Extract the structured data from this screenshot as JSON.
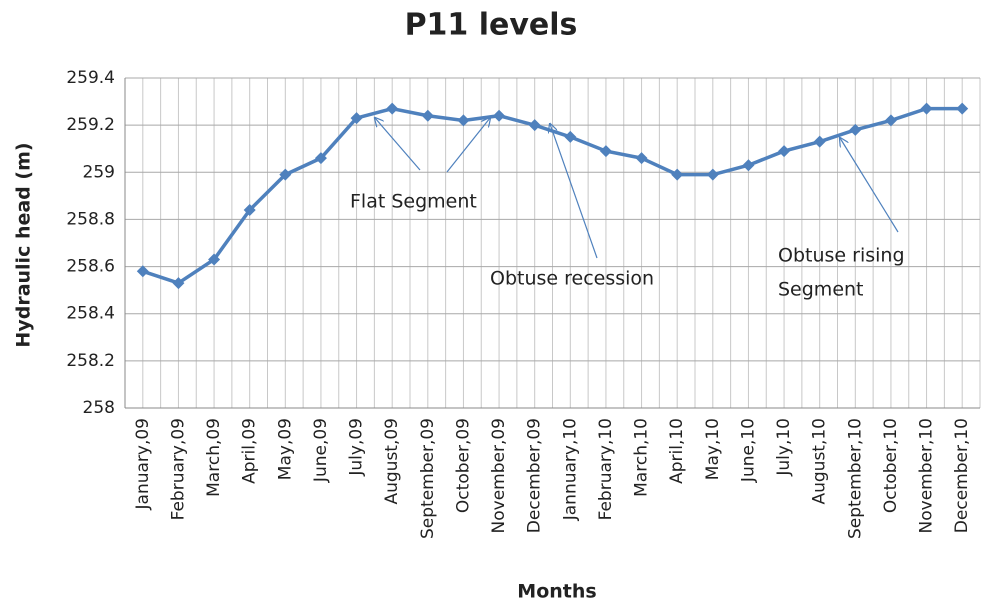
{
  "chart_data": {
    "type": "line",
    "title": "P11 levels",
    "x_label": "Months",
    "y_label": "Hydraulic head (m)",
    "categories": [
      "January,09",
      "February,09",
      "March,09",
      "April,09",
      "May,09",
      "June,09",
      "July,09",
      "August,09",
      "September,09",
      "October,09",
      "November,09",
      "December,09",
      "Jannuary,10",
      "February,10",
      "March,10",
      "April,10",
      "May,10",
      "June,10",
      "July,10",
      "August,10",
      "September,10",
      "October,10",
      "November,10",
      "December,10"
    ],
    "series": [
      {
        "name": "P11",
        "color": "#4f81bd",
        "values": [
          258.58,
          258.53,
          258.63,
          258.84,
          258.99,
          259.06,
          259.23,
          259.27,
          259.24,
          259.22,
          259.24,
          259.2,
          259.15,
          259.09,
          259.06,
          258.99,
          258.99,
          259.03,
          259.09,
          259.13,
          259.18,
          259.22,
          259.27,
          259.27
        ]
      }
    ],
    "ylim": [
      258,
      259.4
    ],
    "yticks": [
      258,
      258.2,
      258.4,
      258.6,
      258.8,
      259,
      259.2,
      259.4
    ],
    "grid": true,
    "annotations": [
      {
        "text": [
          "Flat Segment"
        ]
      },
      {
        "text": [
          "Obtuse recession"
        ]
      },
      {
        "text": [
          "Obtuse rising",
          "Segment"
        ]
      }
    ]
  }
}
